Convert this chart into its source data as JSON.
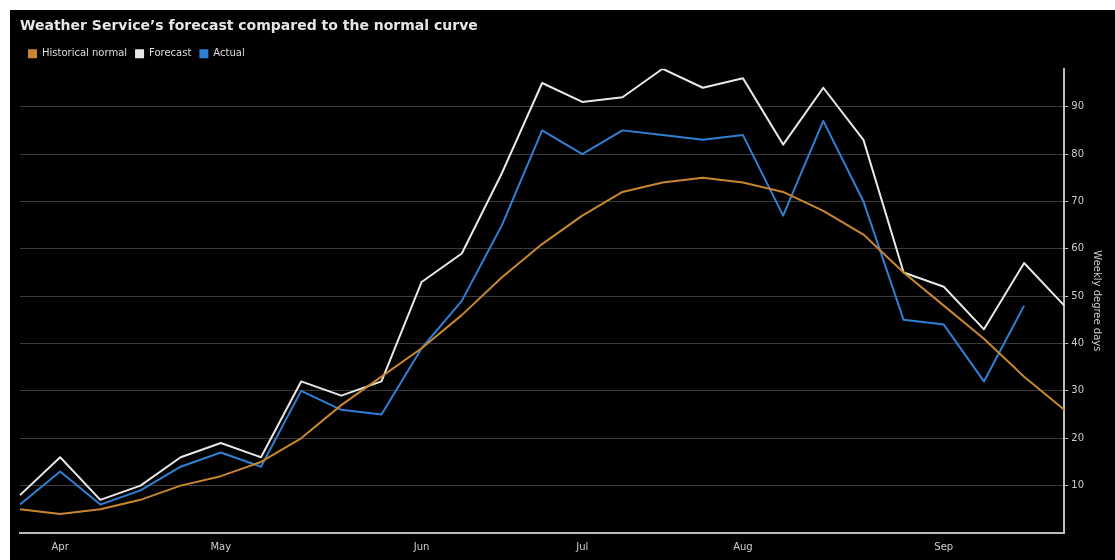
{
  "chart_data": {
    "type": "line",
    "title": "Weather Service’s forecast compared to the normal curve",
    "ylabel": "Weekly degree days",
    "categories": [
      null,
      "Apr",
      null,
      null,
      null,
      "May",
      null,
      null,
      null,
      null,
      "Jun",
      null,
      null,
      null,
      "Jul",
      null,
      null,
      null,
      "Aug",
      null,
      null,
      null,
      null,
      "Sep",
      null,
      null,
      null
    ],
    "series": [
      {
        "name": "Historical normal",
        "color": "#c98630",
        "values": [
          5,
          4,
          5,
          7,
          10,
          12,
          15,
          20,
          27,
          33,
          39,
          46,
          54,
          61,
          67,
          72,
          74,
          75,
          74,
          72,
          68,
          63,
          55,
          48,
          41,
          33,
          26
        ]
      },
      {
        "name": "Forecast",
        "color": "#e8e8e8",
        "values": [
          8,
          16,
          7,
          10,
          16,
          19,
          16,
          32,
          29,
          32,
          53,
          59,
          76,
          95,
          91,
          92,
          98,
          94,
          96,
          82,
          94,
          83,
          55,
          52,
          43,
          57,
          48
        ]
      },
      {
        "name": "Actual",
        "color": "#2f7fd3",
        "values": [
          6,
          13,
          6,
          9,
          14,
          17,
          14,
          30,
          26,
          25,
          39,
          49,
          65,
          85,
          80,
          85,
          84,
          83,
          84,
          67,
          87,
          70,
          45,
          44,
          32,
          48,
          null
        ]
      }
    ],
    "ylim": [
      0,
      98
    ],
    "yticks": [
      10,
      20,
      30,
      40,
      50,
      60,
      70,
      80,
      90
    ],
    "grid": "y",
    "legend": "top left",
    "marker": "none",
    "line_style": "solid"
  }
}
